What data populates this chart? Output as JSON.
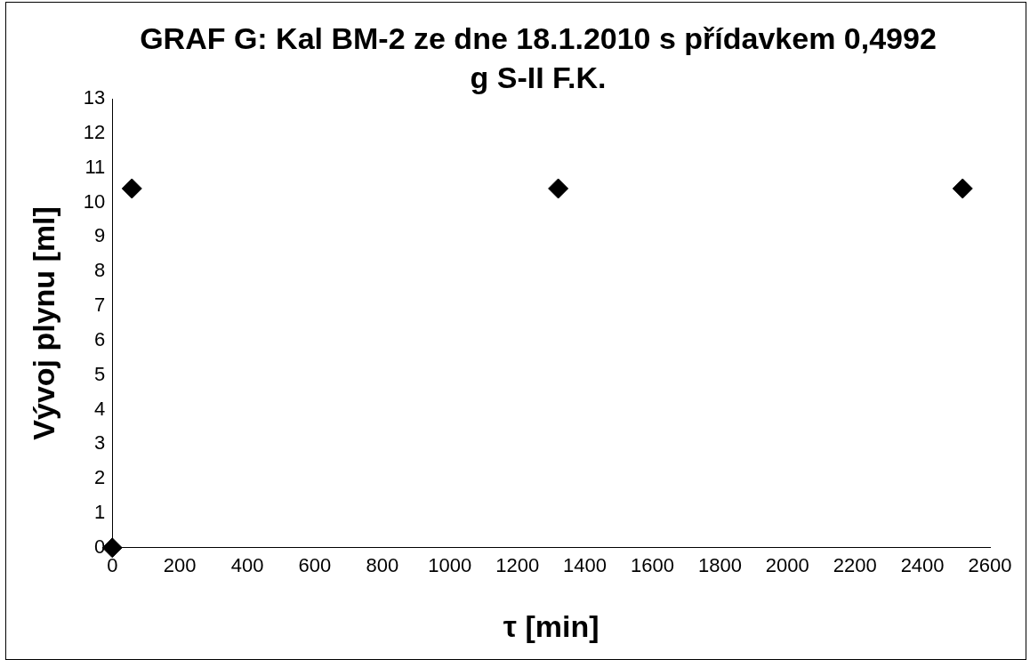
{
  "chart_data": {
    "type": "scatter",
    "title": "GRAF G: Kal BM-2 ze dne 18.1.2010 s přídavkem 0,4992 g S-II F.K.",
    "xlabel": "τ [min]",
    "ylabel": "Vývoj plynu [ml]",
    "series": [
      {
        "color": "#000000",
        "x": [
          0,
          58,
          1321,
          2519
        ],
        "values": [
          0,
          10.4,
          10.4,
          10.4
        ]
      }
    ],
    "xlim": [
      0,
      2600
    ],
    "xticks": [
      0,
      200,
      400,
      600,
      800,
      1000,
      1200,
      1400,
      1600,
      1800,
      2000,
      2200,
      2400,
      2600
    ],
    "ylim": [
      0,
      13
    ],
    "yticks": [
      0,
      1,
      2,
      3,
      4,
      5,
      6,
      7,
      8,
      9,
      10,
      11,
      12,
      13
    ],
    "grid": false,
    "legend": false,
    "marker": "diamond"
  }
}
